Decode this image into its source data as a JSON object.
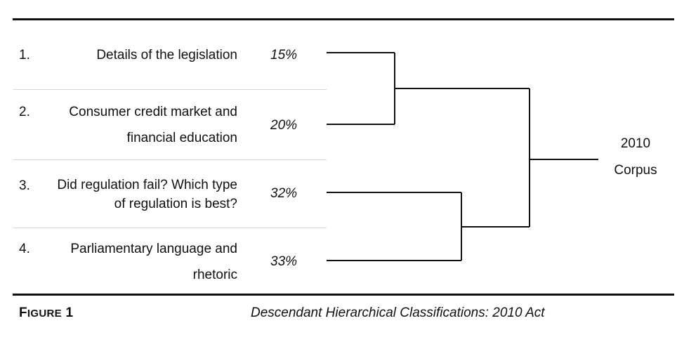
{
  "figure": {
    "label": "FIGURE 1",
    "label_initial": "F",
    "label_rest": "IGURE",
    "label_num": "1",
    "caption": "Descendant Hierarchical Classifications: 2010 Act"
  },
  "classes": [
    {
      "number": "1.",
      "label_lines": [
        "Details of the legislation"
      ],
      "percent": "15%"
    },
    {
      "number": "2.",
      "label_lines": [
        "Consumer credit market and",
        "financial education"
      ],
      "percent": "20%"
    },
    {
      "number": "3.",
      "label_lines": [
        "Did regulation fail? Which type",
        "of regulation is best?"
      ],
      "percent": "32%"
    },
    {
      "number": "4.",
      "label_lines": [
        "Parliamentary language and",
        "rhetoric"
      ],
      "percent": "33%"
    }
  ],
  "root": {
    "line1": "2010",
    "line2": "Corpus"
  },
  "tree": {
    "merges": [
      {
        "left": 1,
        "right": 2
      },
      {
        "left": 3,
        "right": 4
      },
      {
        "left": "merge-1-2",
        "right": "merge-3-4"
      }
    ]
  }
}
